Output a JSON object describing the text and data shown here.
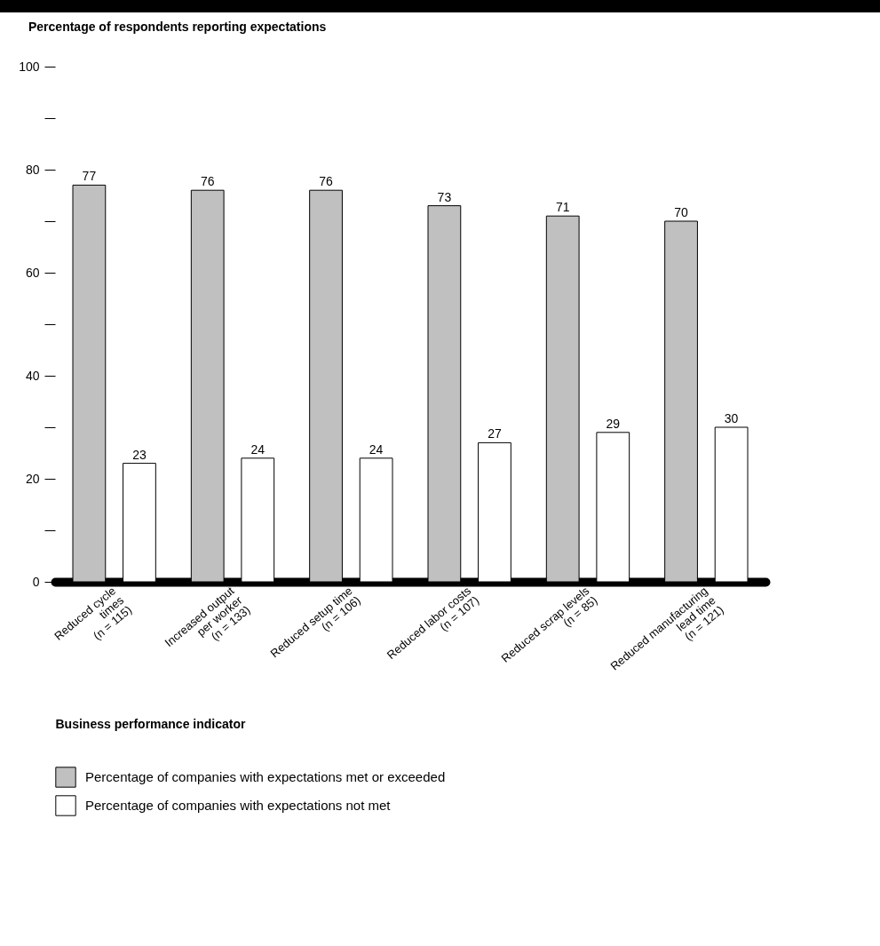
{
  "chart_data": {
    "type": "bar",
    "title": "Percentage of respondents reporting expectations",
    "xlabel": "Business performance indicator",
    "categories": [
      "Reduced cycle\ntimes\n(n = 115)",
      "Increased output\nper worker\n(n = 133)",
      "Reduced setup time\n(n = 106)",
      "Reduced labor costs\n(n = 107)",
      "Reduced scrap levels\n(n = 85)",
      "Reduced manufacturing\nlead time\n(n = 121)"
    ],
    "series": [
      {
        "name": "Percentage of companies with expectations met or exceeded",
        "color": "#c0c0c0",
        "values": [
          77,
          76,
          76,
          73,
          71,
          70
        ]
      },
      {
        "name": "Percentage of companies with expectations not met",
        "color": "#ffffff",
        "values": [
          23,
          24,
          24,
          27,
          29,
          30
        ]
      }
    ],
    "ylim": [
      0,
      100
    ],
    "yticks": [
      0,
      {
        "value": 10,
        "label": null
      },
      20,
      {
        "value": 30,
        "label": null
      },
      40,
      {
        "value": 50,
        "label": null
      },
      60,
      {
        "value": 70,
        "label": null
      },
      80,
      {
        "value": 90,
        "label": null
      },
      100
    ],
    "data_labels": true,
    "grid": false,
    "legend": "bottom"
  }
}
